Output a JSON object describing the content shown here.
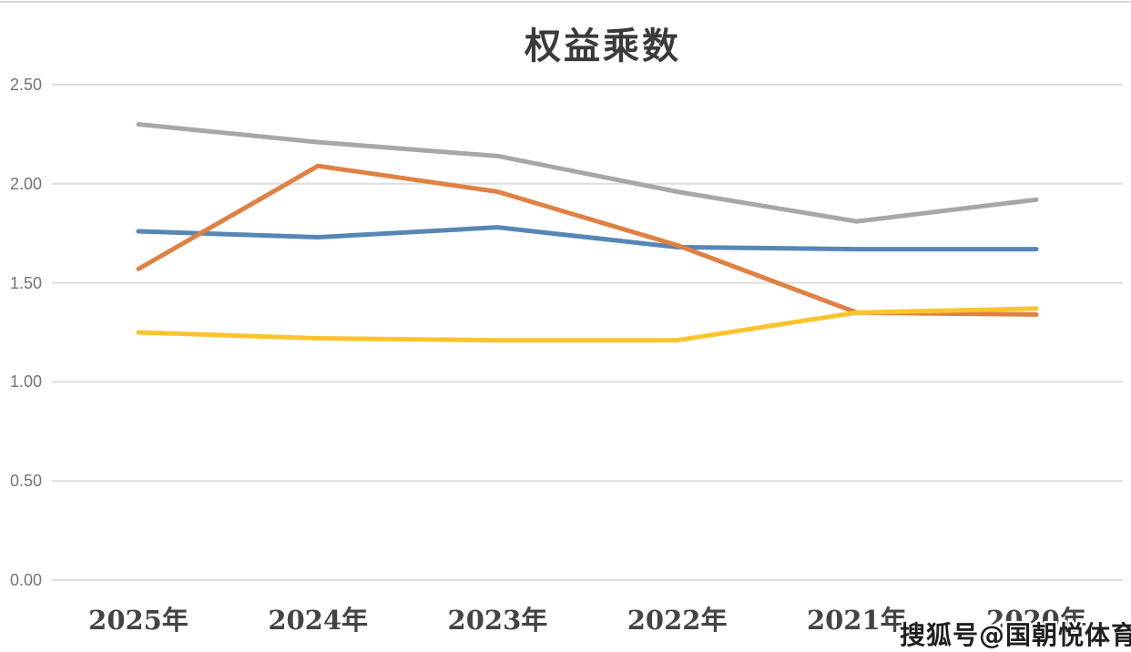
{
  "chart_data": {
    "type": "line",
    "title": "权益乘数",
    "categories": [
      "2025年",
      "2024年",
      "2023年",
      "2022年",
      "2021年",
      "2020年"
    ],
    "series": [
      {
        "name": "blue",
        "color": "#5586B6",
        "values": [
          1.76,
          1.73,
          1.78,
          1.68,
          1.67,
          1.67
        ]
      },
      {
        "name": "gray",
        "color": "#A7A7A7",
        "values": [
          2.3,
          2.21,
          2.14,
          1.96,
          1.81,
          1.92
        ]
      },
      {
        "name": "orange",
        "color": "#DF8142",
        "values": [
          1.57,
          2.09,
          1.96,
          1.69,
          1.35,
          1.34
        ]
      },
      {
        "name": "yellow",
        "color": "#FCC42C",
        "values": [
          1.25,
          1.22,
          1.21,
          1.21,
          1.35,
          1.37
        ]
      }
    ],
    "xlabel": "",
    "ylabel": "",
    "ylim": [
      0,
      2.5
    ],
    "yticks": [
      "0.00",
      "0.50",
      "1.00",
      "1.50",
      "2.00",
      "2.50"
    ],
    "ytick_values": [
      0,
      0.5,
      1.0,
      1.5,
      2.0,
      2.5
    ],
    "grid": true,
    "legend": "none",
    "gridline_color": "#dedede"
  },
  "watermark": {
    "text": "搜狐号@国朝悦体育"
  }
}
